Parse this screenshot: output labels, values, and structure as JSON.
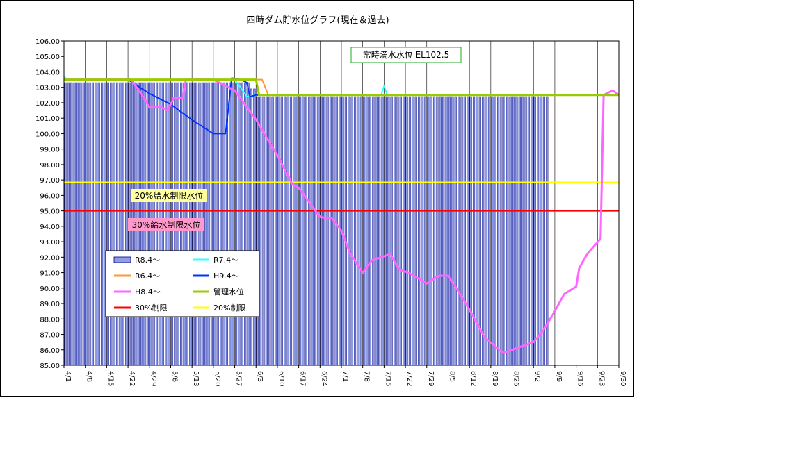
{
  "chart_data": {
    "type": "bar+line",
    "title": "四時ダム貯水位グラフ(現在＆過去)",
    "ylim": [
      85.0,
      106.0
    ],
    "y_ticks": [
      "106.00",
      "105.00",
      "104.00",
      "103.00",
      "102.00",
      "101.00",
      "100.00",
      "99.00",
      "98.00",
      "97.00",
      "96.00",
      "95.00",
      "94.00",
      "93.00",
      "92.00",
      "91.00",
      "90.00",
      "89.00",
      "88.00",
      "87.00",
      "86.00",
      "85.00"
    ],
    "x_start": "4/1",
    "x_end": "9/30",
    "x_ticks": [
      "4/1",
      "4/8",
      "4/15",
      "4/22",
      "4/29",
      "5/6",
      "5/13",
      "5/20",
      "5/27",
      "6/3",
      "6/10",
      "6/17",
      "6/24",
      "7/1",
      "7/8",
      "7/15",
      "7/22",
      "7/29",
      "8/5",
      "8/12",
      "8/19",
      "8/26",
      "9/2",
      "9/9",
      "9/16",
      "9/23",
      "9/30"
    ],
    "annotations": {
      "full_level": "常時満水水位 EL102.5",
      "limit20": "20%給水制限水位",
      "limit30": "30%給水制限水位"
    },
    "reference_lines": [
      {
        "name": "30%制限",
        "value": 95.0,
        "color": "#ff0000"
      },
      {
        "name": "20%制限",
        "value": 96.85,
        "color": "#ffff00"
      }
    ],
    "legend": {
      "items": [
        {
          "label": "R8.4～",
          "kind": "bar",
          "color": "#8f9ce6"
        },
        {
          "label": "R7.4～",
          "kind": "line",
          "color": "#33ffff"
        },
        {
          "label": "R6.4～",
          "kind": "line",
          "color": "#ff9933"
        },
        {
          "label": "H9.4～",
          "kind": "line",
          "color": "#0033ff"
        },
        {
          "label": "H8.4～",
          "kind": "line",
          "color": "#ff66ff"
        },
        {
          "label": "管理水位",
          "kind": "line",
          "color": "#99cc00"
        },
        {
          "label": "30%制限",
          "kind": "line",
          "color": "#ff0000"
        },
        {
          "label": "20%制限",
          "kind": "line",
          "color": "#ffff00"
        }
      ]
    },
    "bar_series": {
      "name": "R8.4～",
      "color": "#8f9ce6",
      "edge": "#000080",
      "x_range": [
        "4/1",
        "9/6"
      ],
      "segments": [
        {
          "from": "4/1",
          "to": "5/31",
          "value": 103.3
        },
        {
          "from": "6/1",
          "to": "6/2",
          "value": 102.9
        },
        {
          "from": "6/3",
          "to": "9/6",
          "value": 102.4
        }
      ]
    },
    "series": [
      {
        "name": "管理水位",
        "color": "#99cc00",
        "width": 3,
        "points": [
          [
            "4/1",
            103.5
          ],
          [
            "6/3",
            103.5
          ],
          [
            "6/4",
            102.5
          ],
          [
            "9/30",
            102.5
          ]
        ]
      },
      {
        "name": "R6.4～",
        "color": "#ff9933",
        "width": 2,
        "points": [
          [
            "4/1",
            103.5
          ],
          [
            "6/5",
            103.5
          ],
          [
            "6/7",
            102.5
          ],
          [
            "9/30",
            102.5
          ]
        ]
      },
      {
        "name": "R7.4～",
        "color": "#33ffff",
        "width": 2,
        "points": [
          [
            "4/1",
            103.7
          ],
          [
            "4/2",
            103.5
          ],
          [
            "5/27",
            103.5
          ],
          [
            "5/31",
            102.4
          ],
          [
            "6/3",
            102.5
          ],
          [
            "7/14",
            102.5
          ],
          [
            "7/15",
            103.1
          ],
          [
            "7/16",
            102.5
          ],
          [
            "9/6",
            102.5
          ]
        ]
      },
      {
        "name": "H9.4～",
        "color": "#0033ff",
        "width": 2,
        "points": [
          [
            "4/1",
            103.5
          ],
          [
            "4/22",
            103.5
          ],
          [
            "4/29",
            102.6
          ],
          [
            "5/6",
            101.9
          ],
          [
            "5/13",
            100.9
          ],
          [
            "5/20",
            100.0
          ],
          [
            "5/24",
            100.0
          ],
          [
            "5/26",
            103.6
          ],
          [
            "5/29",
            103.5
          ],
          [
            "5/31",
            103.3
          ],
          [
            "6/1",
            102.4
          ],
          [
            "6/3",
            102.5
          ],
          [
            "9/6",
            102.5
          ]
        ]
      },
      {
        "name": "H8.4～",
        "color": "#ff66ff",
        "width": 3,
        "points": [
          [
            "4/1",
            103.5
          ],
          [
            "4/23",
            103.5
          ],
          [
            "4/27",
            102.4
          ],
          [
            "4/29",
            101.7
          ],
          [
            "5/3",
            101.7
          ],
          [
            "5/5",
            101.5
          ],
          [
            "5/7",
            102.3
          ],
          [
            "5/10",
            102.3
          ],
          [
            "5/11",
            103.5
          ],
          [
            "5/20",
            103.5
          ],
          [
            "5/27",
            102.8
          ],
          [
            "6/3",
            100.9
          ],
          [
            "6/10",
            98.6
          ],
          [
            "6/15",
            96.7
          ],
          [
            "6/17",
            96.5
          ],
          [
            "6/21",
            95.4
          ],
          [
            "6/24",
            94.6
          ],
          [
            "6/28",
            94.5
          ],
          [
            "7/1",
            93.7
          ],
          [
            "7/4",
            92.2
          ],
          [
            "7/8",
            91.0
          ],
          [
            "7/11",
            91.8
          ],
          [
            "7/17",
            92.2
          ],
          [
            "7/20",
            91.2
          ],
          [
            "7/23",
            91.0
          ],
          [
            "7/29",
            90.3
          ],
          [
            "8/2",
            90.8
          ],
          [
            "8/5",
            90.8
          ],
          [
            "8/9",
            89.6
          ],
          [
            "8/12",
            88.6
          ],
          [
            "8/17",
            86.8
          ],
          [
            "8/23",
            85.8
          ],
          [
            "8/26",
            86.0
          ],
          [
            "9/2",
            86.5
          ],
          [
            "9/5",
            87.2
          ],
          [
            "9/9",
            88.5
          ],
          [
            "9/12",
            89.6
          ],
          [
            "9/16",
            90.1
          ],
          [
            "9/17",
            91.3
          ],
          [
            "9/19",
            92.0
          ],
          [
            "9/20",
            92.3
          ],
          [
            "9/24",
            93.2
          ],
          [
            "9/25",
            102.5
          ],
          [
            "9/28",
            102.8
          ],
          [
            "9/30",
            102.5
          ]
        ]
      },
      {
        "name": "30%制限",
        "color": "#ff0000",
        "width": 2,
        "points": [
          [
            "4/1",
            95.0
          ],
          [
            "9/30",
            95.0
          ]
        ]
      },
      {
        "name": "20%制限",
        "color": "#ffff00",
        "width": 2,
        "points": [
          [
            "4/1",
            96.85
          ],
          [
            "9/30",
            96.85
          ]
        ]
      }
    ]
  }
}
